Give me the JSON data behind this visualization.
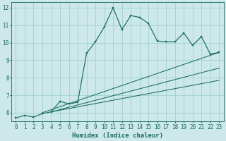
{
  "xlabel": "Humidex (Indice chaleur)",
  "bg_color": "#cce8e8",
  "grid_color": "#99cccc",
  "line_color": "#1a6b5e",
  "xlim": [
    -0.5,
    23.5
  ],
  "ylim": [
    5.5,
    12.3
  ],
  "xticks": [
    0,
    1,
    2,
    3,
    4,
    5,
    6,
    7,
    8,
    9,
    10,
    11,
    12,
    13,
    14,
    15,
    16,
    17,
    18,
    19,
    20,
    21,
    22,
    23
  ],
  "yticks": [
    6,
    7,
    8,
    9,
    10,
    11,
    12
  ],
  "curve1_x": [
    0,
    1,
    2,
    3,
    4,
    5,
    6,
    7,
    8,
    9,
    10,
    11,
    12,
    13,
    14,
    15,
    16,
    17,
    18,
    19,
    20,
    21,
    22,
    23
  ],
  "curve1_y": [
    5.7,
    5.85,
    5.75,
    5.95,
    6.05,
    6.65,
    6.5,
    6.6,
    9.4,
    10.05,
    10.9,
    12.0,
    10.75,
    11.55,
    11.45,
    11.1,
    10.1,
    10.05,
    10.05,
    10.55,
    9.85,
    10.35,
    9.35,
    9.45
  ],
  "line2_x": [
    3,
    23
  ],
  "line2_y": [
    6.0,
    9.45
  ],
  "line3_x": [
    4,
    23
  ],
  "line3_y": [
    6.05,
    8.55
  ],
  "line4_x": [
    4,
    23
  ],
  "line4_y": [
    6.05,
    7.85
  ],
  "tick_fontsize": 5.5,
  "xlabel_fontsize": 6.5
}
